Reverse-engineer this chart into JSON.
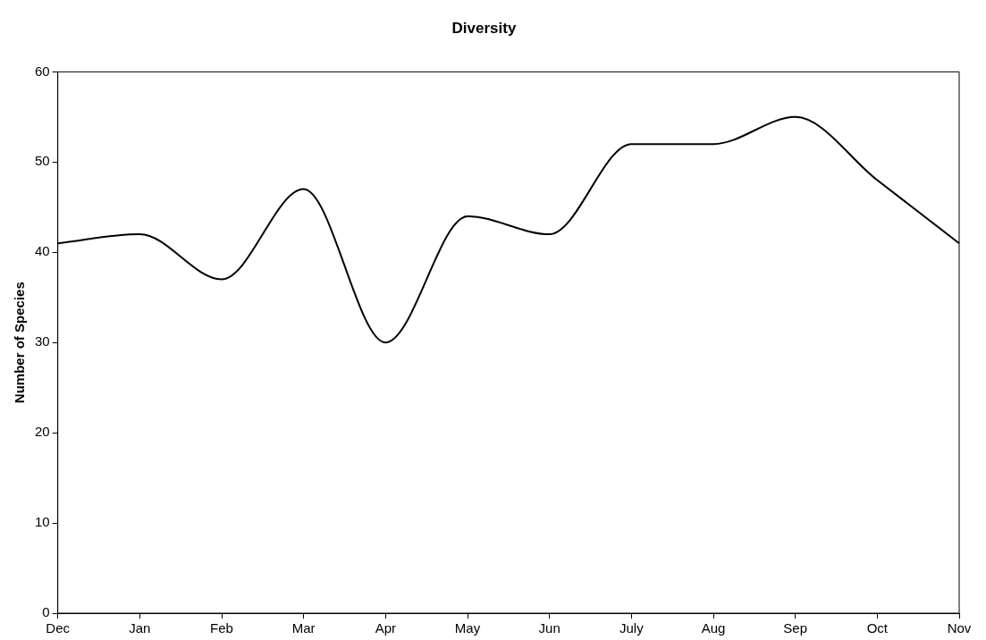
{
  "chart_data": {
    "type": "line",
    "title": "Diversity",
    "ylabel": "Number of Species",
    "categories": [
      "Dec",
      "Jan",
      "Feb",
      "Mar",
      "Apr",
      "May",
      "Jun",
      "July",
      "Aug",
      "Sep",
      "Oct",
      "Nov"
    ],
    "series": [
      {
        "color": "#000000",
        "values": [
          41,
          42,
          37,
          47,
          30,
          44,
          42,
          52,
          52,
          55,
          48,
          41
        ]
      }
    ],
    "ylim": [
      0,
      60
    ],
    "yticks": [
      0,
      10,
      20,
      30,
      40,
      50,
      60
    ],
    "grid": false,
    "legend": false,
    "marker": "none",
    "line_style": "solid"
  }
}
